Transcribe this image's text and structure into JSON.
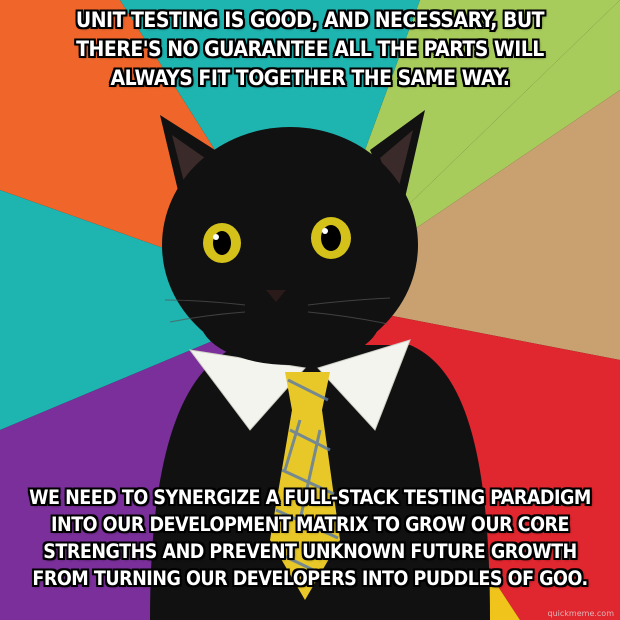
{
  "meme": {
    "top_lines": [
      "UNIT TESTING IS GOOD, AND NECESSARY, BUT",
      "THERE'S NO GUARANTEE ALL THE PARTS WILL",
      "ALWAYS FIT TOGETHER THE SAME WAY."
    ],
    "bottom_lines": [
      "WE NEED TO SYNERGIZE A FULL-STACK TESTING PARADIGM",
      "INTO OUR DEVELOPMENT MATRIX TO GROW OUR CORE",
      "STRENGTHS AND PREVENT UNKNOWN FUTURE GROWTH",
      "FROM TURNING OUR DEVELOPERS INTO PUDDLES OF GOO."
    ],
    "watermark": "quickmeme.com"
  },
  "colors": {
    "bg_green": "#a8cc5c",
    "bg_tan": "#c9a070",
    "bg_red": "#e0262e",
    "bg_orange": "#f0662a",
    "bg_teal": "#1eb4b0",
    "bg_purple": "#7a2f9a",
    "bg_yellow": "#f0c41a",
    "bg_blue": "#2a7ac0",
    "cat": "#111111",
    "eyes": "#d4c21a",
    "collar": "#f4f4ee",
    "tie": "#e8c828"
  }
}
